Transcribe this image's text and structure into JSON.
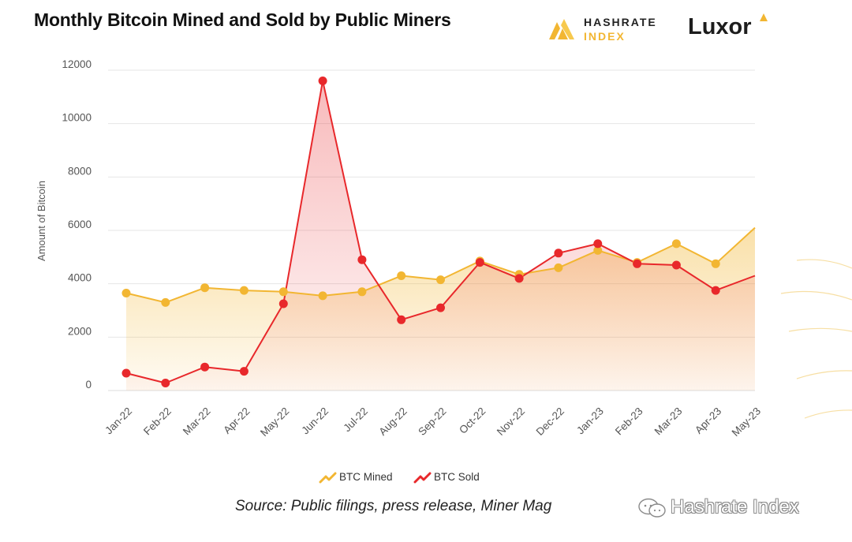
{
  "header": {
    "title": "Monthly Bitcoin Mined and Sold by Public Miners",
    "brand_hashrate_line1": "HASHRATE",
    "brand_hashrate_line2": "INDEX",
    "brand_luxor": "Luxor"
  },
  "colors": {
    "mined": "#f2b632",
    "sold": "#e8282b",
    "grid": "#e6e6e6",
    "tick_text": "#555555"
  },
  "chart_data": {
    "type": "area",
    "title": "Monthly Bitcoin Mined and Sold by Public Miners",
    "xlabel": "",
    "ylabel": "Amount of Bitcoin",
    "ylim": [
      0,
      12000
    ],
    "yticks": [
      0,
      2000,
      4000,
      6000,
      8000,
      10000,
      12000
    ],
    "grid": true,
    "legend_position": "bottom-center",
    "categories": [
      "Jan-22",
      "Feb-22",
      "Mar-22",
      "Apr-22",
      "May-22",
      "Jun-22",
      "Jul-22",
      "Aug-22",
      "Sep-22",
      "Oct-22",
      "Nov-22",
      "Dec-22",
      "Jan-23",
      "Feb-23",
      "Mar-23",
      "Apr-23",
      "May-23"
    ],
    "series": [
      {
        "name": "BTC Mined",
        "values": [
          3650,
          3300,
          3850,
          3750,
          3700,
          3550,
          3700,
          4300,
          4150,
          4850,
          4350,
          4600,
          5250,
          4800,
          5500,
          4750,
          6100
        ]
      },
      {
        "name": "BTC Sold",
        "values": [
          650,
          280,
          880,
          720,
          3250,
          11600,
          4900,
          2650,
          3100,
          4800,
          4200,
          5150,
          5500,
          4750,
          4700,
          3750,
          4300
        ]
      }
    ]
  },
  "source": "Source: Public filings, press release, Miner Mag",
  "watermark": "Hashrate Index"
}
